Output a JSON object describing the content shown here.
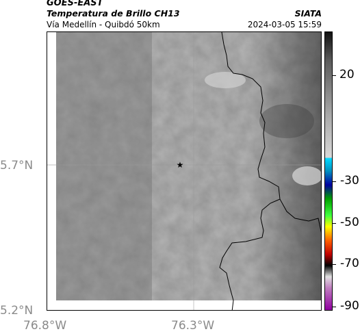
{
  "header": {
    "satellite": "GOES-EAST",
    "product": "Temperatura de Brillo CH13",
    "region": "Vía Medellín - Quibdó 50km",
    "org": "SIATA",
    "datetime": "2024-03-05 15:59"
  },
  "map": {
    "lat_labels": [
      "5.7°N",
      "5.2°N"
    ],
    "lon_labels": [
      "76.8°W",
      "76.3°W"
    ],
    "marker": "star-icon"
  },
  "colorbar": {
    "tick_labels": [
      "20",
      "-30",
      "-50",
      "-70",
      "-90"
    ],
    "tick_values": [
      20,
      -30,
      -50,
      -70,
      -90
    ],
    "colors": [
      "#1a1a1a",
      "#c8c8c8",
      "#00c8ff",
      "#0000a0",
      "#00c000",
      "#ffff00",
      "#ff4000",
      "#000000",
      "#ffffff",
      "#b040b0"
    ]
  }
}
